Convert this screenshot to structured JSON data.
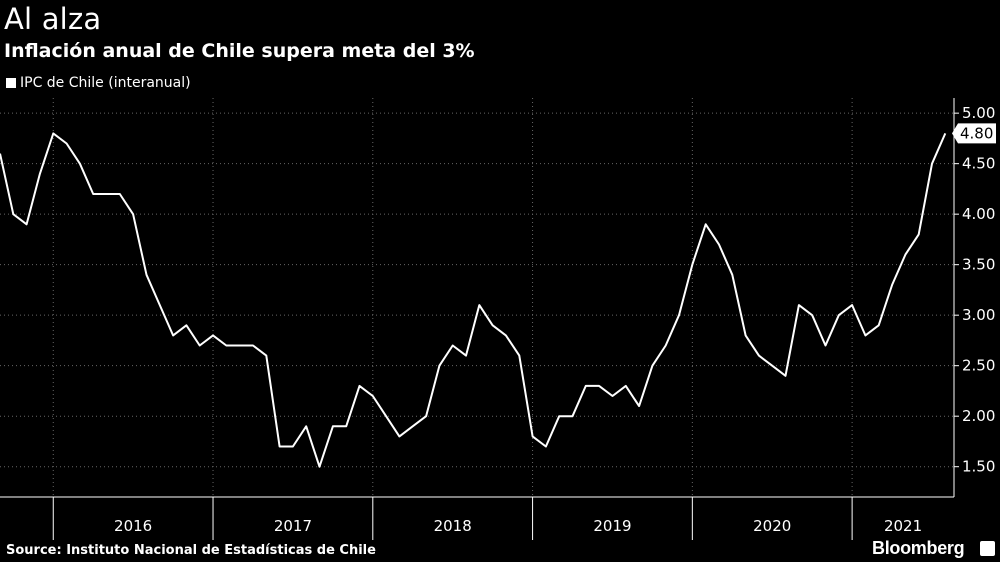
{
  "header": {
    "title": "Al alza",
    "subtitle": "Inflación anual de Chile supera meta del 3%"
  },
  "legend": {
    "label": "IPC de Chile (interanual)"
  },
  "footer": {
    "source": "Source: Instituto Nacional de Estadísticas de Chile",
    "brand": "Bloomberg"
  },
  "colors": {
    "background": "#000000",
    "line": "#ffffff",
    "grid": "#666666"
  },
  "chart_data": {
    "type": "line",
    "title": "Al alza",
    "subtitle": "Inflación anual de Chile supera meta del 3%",
    "xlabel": "",
    "ylabel": "",
    "ylim": [
      1.2,
      5.15
    ],
    "y_ticks": [
      "5.00",
      "4.50",
      "4.00",
      "3.50",
      "3.00",
      "2.50",
      "2.00",
      "1.50"
    ],
    "y_tick_values": [
      5.0,
      4.5,
      4.0,
      3.5,
      3.0,
      2.5,
      2.0,
      1.5
    ],
    "x_tick_labels": [
      "2016",
      "2017",
      "2018",
      "2019",
      "2020",
      "2021"
    ],
    "x_start": "2015-09",
    "x_end": "2021-07",
    "grid": true,
    "y_axis_position": "right",
    "last_value_label": "4.80",
    "series": [
      {
        "name": "IPC de Chile (interanual)",
        "x": [
          "2015-09",
          "2015-10",
          "2015-11",
          "2015-12",
          "2016-01",
          "2016-02",
          "2016-03",
          "2016-04",
          "2016-05",
          "2016-06",
          "2016-07",
          "2016-08",
          "2016-09",
          "2016-10",
          "2016-11",
          "2016-12",
          "2017-01",
          "2017-02",
          "2017-03",
          "2017-04",
          "2017-05",
          "2017-06",
          "2017-07",
          "2017-08",
          "2017-09",
          "2017-10",
          "2017-11",
          "2017-12",
          "2018-01",
          "2018-02",
          "2018-03",
          "2018-04",
          "2018-05",
          "2018-06",
          "2018-07",
          "2018-08",
          "2018-09",
          "2018-10",
          "2018-11",
          "2018-12",
          "2019-01",
          "2019-02",
          "2019-03",
          "2019-04",
          "2019-05",
          "2019-06",
          "2019-07",
          "2019-08",
          "2019-09",
          "2019-10",
          "2019-11",
          "2019-12",
          "2020-01",
          "2020-02",
          "2020-03",
          "2020-04",
          "2020-05",
          "2020-06",
          "2020-07",
          "2020-08",
          "2020-09",
          "2020-10",
          "2020-11",
          "2020-12",
          "2021-01",
          "2021-02",
          "2021-03",
          "2021-04",
          "2021-05",
          "2021-06",
          "2021-07",
          "2021-08"
        ],
        "values": [
          4.6,
          4.0,
          3.9,
          4.4,
          4.8,
          4.7,
          4.5,
          4.2,
          4.2,
          4.2,
          4.0,
          3.4,
          3.1,
          2.8,
          2.9,
          2.7,
          2.8,
          2.7,
          2.7,
          2.7,
          2.6,
          1.7,
          1.7,
          1.9,
          1.5,
          1.9,
          1.9,
          2.3,
          2.2,
          2.0,
          1.8,
          1.9,
          2.0,
          2.5,
          2.7,
          2.6,
          3.1,
          2.9,
          2.8,
          2.6,
          1.8,
          1.7,
          2.0,
          2.0,
          2.3,
          2.3,
          2.2,
          2.3,
          2.1,
          2.5,
          2.7,
          3.0,
          3.5,
          3.9,
          3.7,
          3.4,
          2.8,
          2.6,
          2.5,
          2.4,
          3.1,
          3.0,
          2.7,
          3.0,
          3.1,
          2.8,
          2.9,
          3.3,
          3.6,
          3.8,
          4.5,
          4.8
        ]
      }
    ]
  }
}
